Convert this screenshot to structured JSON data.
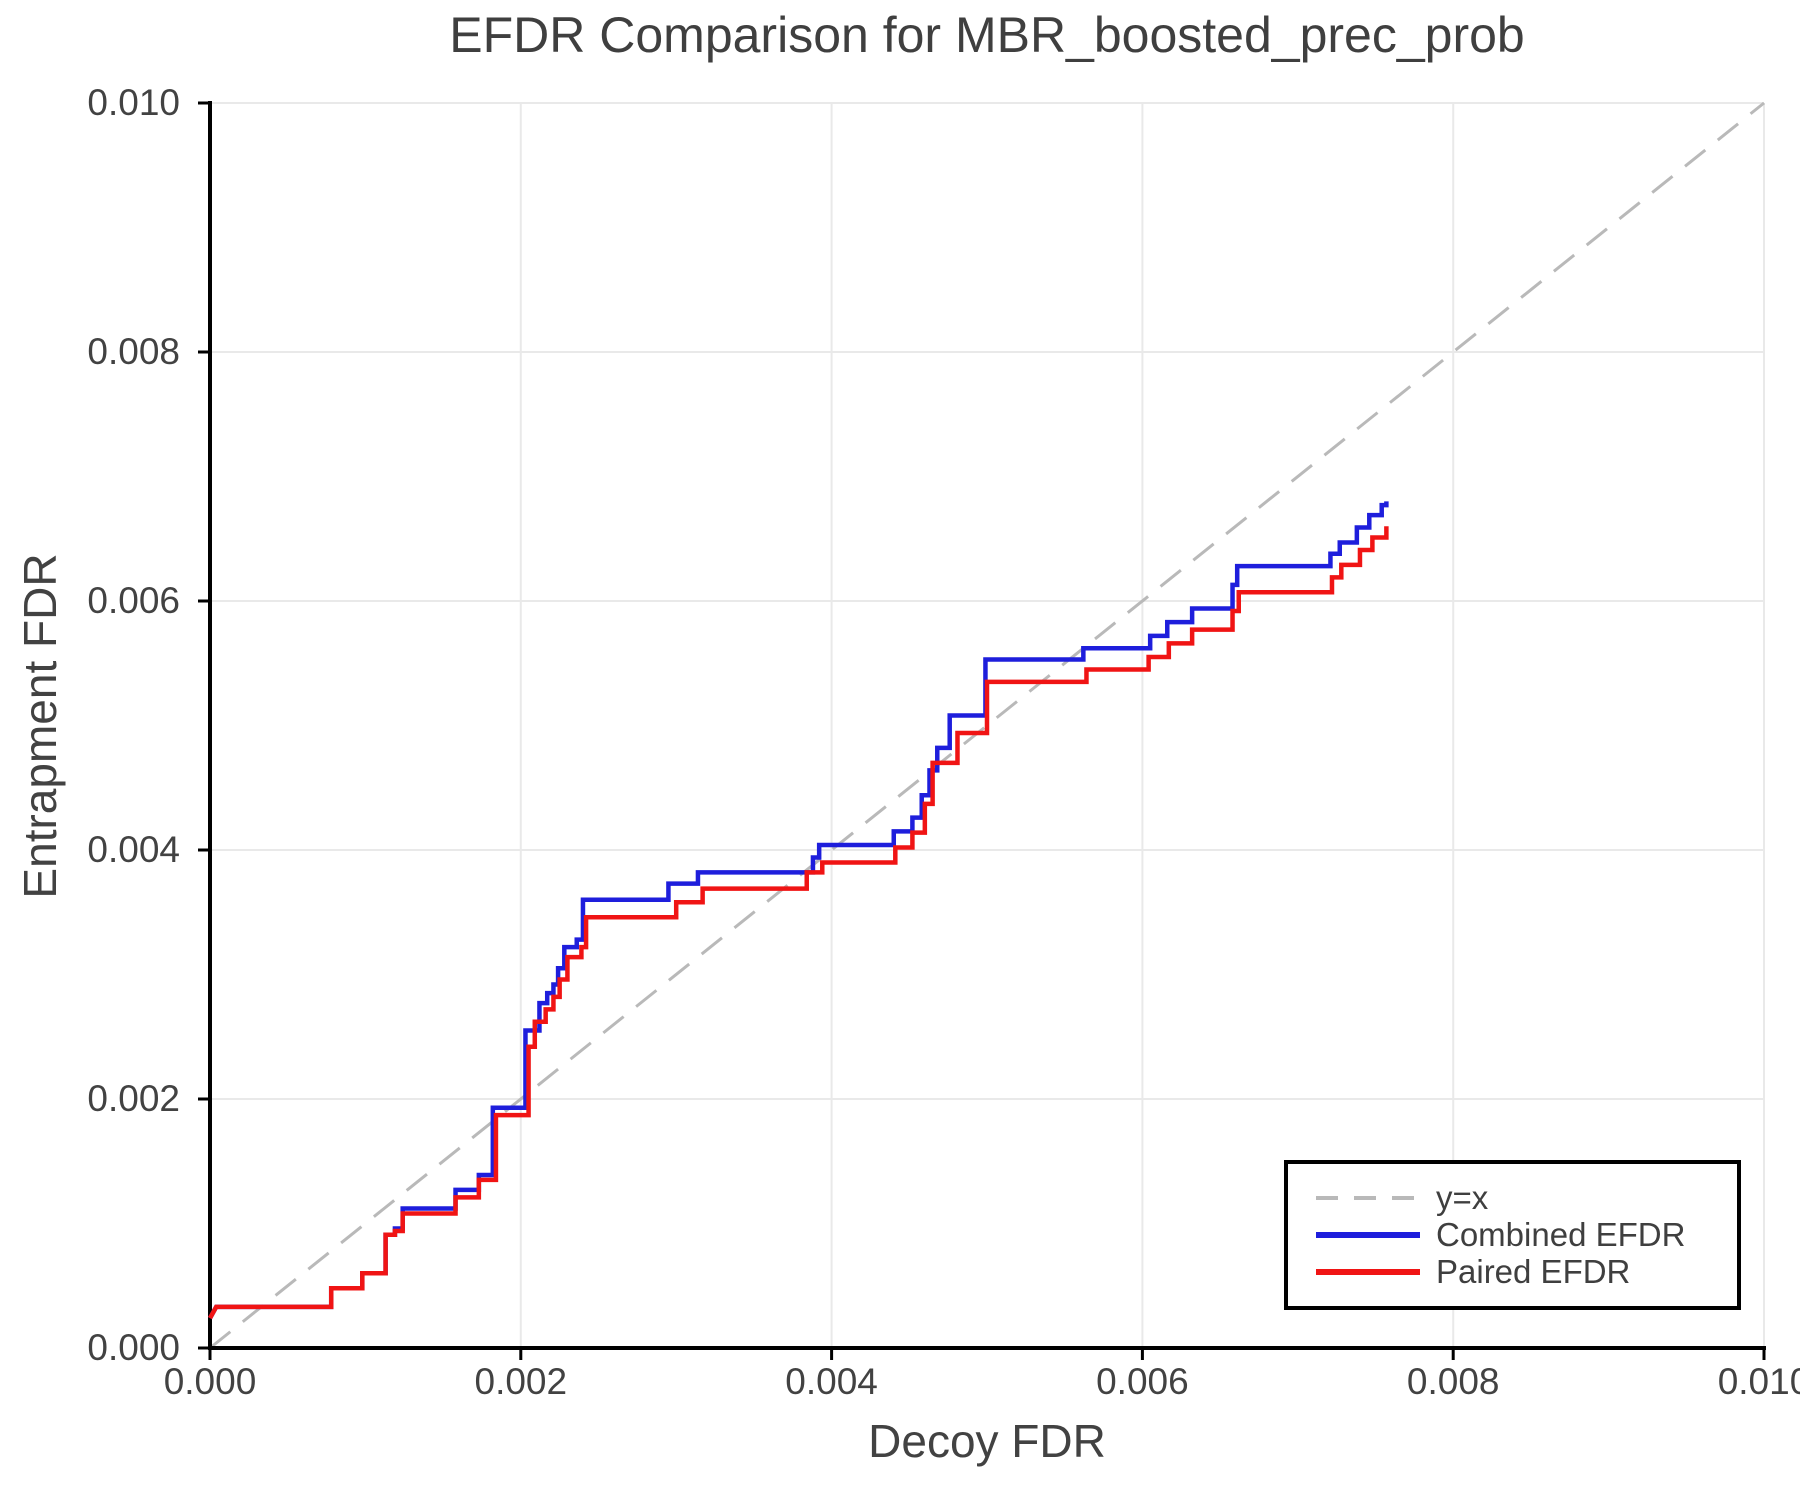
{
  "chart_data": {
    "type": "line",
    "title": "EFDR Comparison for MBR_boosted_prec_prob",
    "xlabel": "Decoy FDR",
    "ylabel": "Entrapment FDR",
    "xlim": [
      0.0,
      0.01
    ],
    "ylim": [
      0.0,
      0.01
    ],
    "grid": true,
    "x_ticks": {
      "values": [
        0.0,
        0.002,
        0.004,
        0.006,
        0.008,
        0.01
      ],
      "labels": [
        "0.000",
        "0.002",
        "0.004",
        "0.006",
        "0.008",
        "0.010"
      ]
    },
    "y_ticks": {
      "values": [
        0.0,
        0.002,
        0.004,
        0.006,
        0.008,
        0.01
      ],
      "labels": [
        "0.000",
        "0.002",
        "0.004",
        "0.006",
        "0.008",
        "0.010"
      ]
    },
    "colors": {
      "grid": "#e9e9e9",
      "spine": "#000000",
      "reference": "#b9b9b9",
      "combined": "#1e1edc",
      "paired": "#f01414"
    },
    "reference_line": {
      "label": "y=x",
      "style": "dashed",
      "from": [
        0.0,
        0.0
      ],
      "to": [
        0.01,
        0.01
      ]
    },
    "legend": {
      "position": "lower right",
      "items": [
        {
          "label": "y=x",
          "style": "dashed",
          "color": "#b9b9b9"
        },
        {
          "label": "Combined EFDR",
          "style": "solid",
          "color": "#1e1edc"
        },
        {
          "label": "Paired EFDR",
          "style": "solid",
          "color": "#f01414"
        }
      ]
    },
    "series": [
      {
        "name": "Combined EFDR",
        "color": "#1e1edc",
        "points": [
          [
            0.0,
            0.00024
          ],
          [
            4e-05,
            0.00033
          ],
          [
            0.00078,
            0.00033
          ],
          [
            0.00078,
            0.00048
          ],
          [
            0.00098,
            0.00048
          ],
          [
            0.00098,
            0.0006
          ],
          [
            0.00113,
            0.0006
          ],
          [
            0.00113,
            0.00091
          ],
          [
            0.00119,
            0.00091
          ],
          [
            0.00119,
            0.00096
          ],
          [
            0.00124,
            0.00096
          ],
          [
            0.00124,
            0.00112
          ],
          [
            0.00158,
            0.00112
          ],
          [
            0.00158,
            0.00127
          ],
          [
            0.00173,
            0.00127
          ],
          [
            0.00173,
            0.00139
          ],
          [
            0.00182,
            0.00139
          ],
          [
            0.00182,
            0.00193
          ],
          [
            0.00203,
            0.00193
          ],
          [
            0.00203,
            0.00255
          ],
          [
            0.00212,
            0.00255
          ],
          [
            0.00212,
            0.00277
          ],
          [
            0.00217,
            0.00277
          ],
          [
            0.00217,
            0.00285
          ],
          [
            0.00221,
            0.00285
          ],
          [
            0.00221,
            0.00292
          ],
          [
            0.00224,
            0.00292
          ],
          [
            0.00224,
            0.00305
          ],
          [
            0.00228,
            0.00305
          ],
          [
            0.00228,
            0.00322
          ],
          [
            0.00236,
            0.00322
          ],
          [
            0.00236,
            0.00328
          ],
          [
            0.0024,
            0.00328
          ],
          [
            0.0024,
            0.0036
          ],
          [
            0.00295,
            0.0036
          ],
          [
            0.00295,
            0.00373
          ],
          [
            0.00314,
            0.00373
          ],
          [
            0.00314,
            0.00382
          ],
          [
            0.00388,
            0.00382
          ],
          [
            0.00388,
            0.00394
          ],
          [
            0.00392,
            0.00394
          ],
          [
            0.00392,
            0.00404
          ],
          [
            0.0044,
            0.00404
          ],
          [
            0.0044,
            0.00415
          ],
          [
            0.00452,
            0.00415
          ],
          [
            0.00452,
            0.00426
          ],
          [
            0.00458,
            0.00426
          ],
          [
            0.00458,
            0.00444
          ],
          [
            0.00463,
            0.00444
          ],
          [
            0.00463,
            0.00464
          ],
          [
            0.00468,
            0.00464
          ],
          [
            0.00468,
            0.00482
          ],
          [
            0.00476,
            0.00482
          ],
          [
            0.00476,
            0.00508
          ],
          [
            0.00499,
            0.00508
          ],
          [
            0.00499,
            0.00553
          ],
          [
            0.00562,
            0.00553
          ],
          [
            0.00562,
            0.00562
          ],
          [
            0.00605,
            0.00562
          ],
          [
            0.00605,
            0.00572
          ],
          [
            0.00616,
            0.00572
          ],
          [
            0.00616,
            0.00583
          ],
          [
            0.00632,
            0.00583
          ],
          [
            0.00632,
            0.00594
          ],
          [
            0.00658,
            0.00594
          ],
          [
            0.00658,
            0.00613
          ],
          [
            0.00661,
            0.00613
          ],
          [
            0.00661,
            0.00628
          ],
          [
            0.00721,
            0.00628
          ],
          [
            0.00721,
            0.00638
          ],
          [
            0.00727,
            0.00638
          ],
          [
            0.00727,
            0.00647
          ],
          [
            0.00738,
            0.00647
          ],
          [
            0.00738,
            0.00659
          ],
          [
            0.00746,
            0.00659
          ],
          [
            0.00746,
            0.00669
          ],
          [
            0.00754,
            0.00669
          ],
          [
            0.00754,
            0.00677
          ],
          [
            0.00757,
            0.00677
          ],
          [
            0.00757,
            0.0068
          ]
        ]
      },
      {
        "name": "Paired EFDR",
        "color": "#f01414",
        "points": [
          [
            0.0,
            0.00024
          ],
          [
            4e-05,
            0.00033
          ],
          [
            0.00078,
            0.00033
          ],
          [
            0.00078,
            0.00048
          ],
          [
            0.00098,
            0.00048
          ],
          [
            0.00098,
            0.0006
          ],
          [
            0.00113,
            0.0006
          ],
          [
            0.00113,
            0.00091
          ],
          [
            0.00119,
            0.00091
          ],
          [
            0.00119,
            0.00094
          ],
          [
            0.00124,
            0.00094
          ],
          [
            0.00124,
            0.00108
          ],
          [
            0.00158,
            0.00108
          ],
          [
            0.00158,
            0.00121
          ],
          [
            0.00173,
            0.00121
          ],
          [
            0.00173,
            0.00135
          ],
          [
            0.00184,
            0.00135
          ],
          [
            0.00184,
            0.00187
          ],
          [
            0.00205,
            0.00187
          ],
          [
            0.00205,
            0.00242
          ],
          [
            0.00209,
            0.00242
          ],
          [
            0.00209,
            0.00262
          ],
          [
            0.00216,
            0.00262
          ],
          [
            0.00216,
            0.00272
          ],
          [
            0.00221,
            0.00272
          ],
          [
            0.00221,
            0.00282
          ],
          [
            0.00225,
            0.00282
          ],
          [
            0.00225,
            0.00296
          ],
          [
            0.0023,
            0.00296
          ],
          [
            0.0023,
            0.00314
          ],
          [
            0.00239,
            0.00314
          ],
          [
            0.00239,
            0.00322
          ],
          [
            0.00242,
            0.00322
          ],
          [
            0.00242,
            0.00346
          ],
          [
            0.003,
            0.00346
          ],
          [
            0.003,
            0.00358
          ],
          [
            0.00317,
            0.00358
          ],
          [
            0.00317,
            0.00369
          ],
          [
            0.00384,
            0.00369
          ],
          [
            0.00384,
            0.00382
          ],
          [
            0.00394,
            0.00382
          ],
          [
            0.00394,
            0.0039
          ],
          [
            0.00441,
            0.0039
          ],
          [
            0.00441,
            0.00402
          ],
          [
            0.00452,
            0.00402
          ],
          [
            0.00452,
            0.00414
          ],
          [
            0.0046,
            0.00414
          ],
          [
            0.0046,
            0.00437
          ],
          [
            0.00465,
            0.00437
          ],
          [
            0.00465,
            0.0047
          ],
          [
            0.00481,
            0.0047
          ],
          [
            0.00481,
            0.00494
          ],
          [
            0.005,
            0.00494
          ],
          [
            0.005,
            0.00535
          ],
          [
            0.00564,
            0.00535
          ],
          [
            0.00564,
            0.00545
          ],
          [
            0.00604,
            0.00545
          ],
          [
            0.00604,
            0.00555
          ],
          [
            0.00617,
            0.00555
          ],
          [
            0.00617,
            0.00566
          ],
          [
            0.00632,
            0.00566
          ],
          [
            0.00632,
            0.00577
          ],
          [
            0.00658,
            0.00577
          ],
          [
            0.00658,
            0.00592
          ],
          [
            0.00662,
            0.00592
          ],
          [
            0.00662,
            0.00607
          ],
          [
            0.00722,
            0.00607
          ],
          [
            0.00722,
            0.00619
          ],
          [
            0.00728,
            0.00619
          ],
          [
            0.00728,
            0.00629
          ],
          [
            0.0074,
            0.00629
          ],
          [
            0.0074,
            0.00641
          ],
          [
            0.00748,
            0.00641
          ],
          [
            0.00748,
            0.00651
          ],
          [
            0.00757,
            0.00651
          ],
          [
            0.00757,
            0.0066
          ]
        ]
      }
    ]
  }
}
